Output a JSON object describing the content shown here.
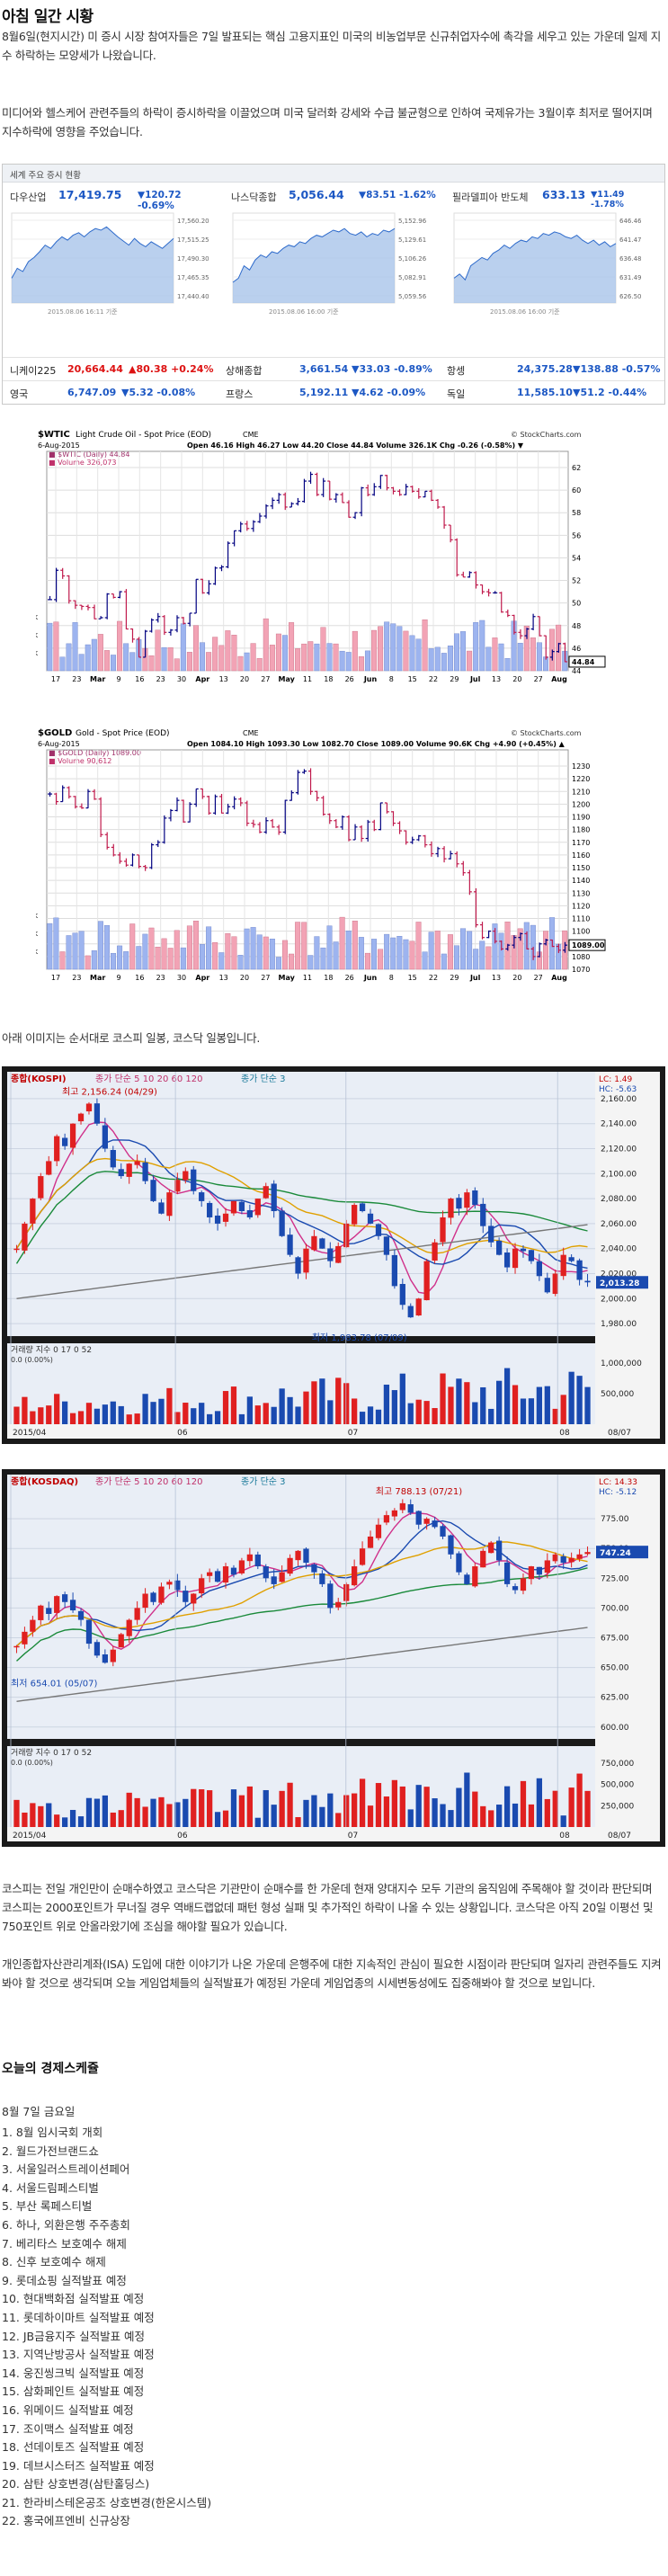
{
  "title": "아침 일간 시황",
  "intro1": "8월6일(현지시간) 미 증시 시장 참여자들은 7일 발표되는 핵심 고용지표인 미국의 비농업부문 신규취업자수에 촉각을 세우고 있는 가운데 일제 지수 하락하는 모양세가 나왔습니다.",
  "intro2": "미디어와 헬스케어 관련주들의 하락이 증시하락을 이끌었으며 미국 달러화 강세와 수급 불균형으로 인하여 국제유가는 3월이후 최저로 떨어지며 지수하락에 영향을 주었습니다.",
  "market": {
    "header": "세계 주요 증시 현황",
    "indices": [
      {
        "name": "다우산업",
        "value": "17,419.75",
        "change": "▼120.72 -0.69%",
        "ticks": [
          "17,560.20",
          "17,515.25",
          "17,490.30",
          "17,465.35",
          "17,440.40"
        ],
        "time": "2015.08.06 16:11 기준",
        "series": [
          0.3,
          0.42,
          0.38,
          0.5,
          0.55,
          0.62,
          0.7,
          0.66,
          0.74,
          0.8,
          0.76,
          0.82,
          0.85,
          0.8,
          0.86,
          0.9,
          0.88,
          0.92,
          0.86,
          0.8,
          0.75,
          0.7,
          0.78,
          0.72,
          0.68,
          0.74,
          0.7,
          0.66,
          0.72,
          0.78
        ]
      },
      {
        "name": "나스닥종합",
        "value": "5,056.44",
        "change": "▼83.51 -1.62%",
        "ticks": [
          "5,152.96",
          "5,129.61",
          "5,106.26",
          "5,082.91",
          "5,059.56"
        ],
        "time": "2015.08.06 16:00 기준",
        "series": [
          0.25,
          0.3,
          0.45,
          0.4,
          0.52,
          0.58,
          0.55,
          0.62,
          0.6,
          0.66,
          0.7,
          0.68,
          0.74,
          0.72,
          0.78,
          0.82,
          0.8,
          0.84,
          0.88,
          0.86,
          0.9,
          0.84,
          0.82,
          0.86,
          0.8,
          0.84,
          0.82,
          0.88,
          0.86,
          0.9
        ]
      },
      {
        "name": "필라델피아 반도체",
        "value": "633.13",
        "change": "▼11.49 -1.78%",
        "ticks": [
          "646.46",
          "641.47",
          "636.48",
          "631.49",
          "626.50"
        ],
        "time": "2015.08.06 16:00 기준",
        "series": [
          0.3,
          0.35,
          0.28,
          0.45,
          0.5,
          0.55,
          0.52,
          0.6,
          0.64,
          0.7,
          0.66,
          0.72,
          0.76,
          0.74,
          0.8,
          0.78,
          0.84,
          0.82,
          0.86,
          0.84,
          0.8,
          0.78,
          0.82,
          0.76,
          0.72,
          0.76,
          0.7,
          0.74,
          0.68,
          0.72
        ]
      }
    ],
    "rows": [
      [
        [
          "니케이225",
          "20,664.44",
          "▲80.38 +0.24%",
          "pos"
        ],
        [
          "상해종합",
          "3,661.54",
          "▼33.03 -0.89%",
          "neg"
        ],
        [
          "항셍",
          "24,375.28",
          "▼138.88 -0.57%",
          "neg"
        ]
      ],
      [
        [
          "영국",
          "6,747.09",
          "▼5.32 -0.08%",
          "neg"
        ],
        [
          "프랑스",
          "5,192.11",
          "▼4.62 -0.09%",
          "neg"
        ],
        [
          "독일",
          "11,585.10",
          "▼51.2 -0.44%",
          "neg"
        ]
      ]
    ]
  },
  "wtic": {
    "ticker": "$WTIC",
    "name": "Light Crude Oil - Spot Price (EOD)",
    "exch": "CME",
    "brand": "© StockCharts.com",
    "date": "6-Aug-2015",
    "ohlc": "Open 46.16  High 46.27  Low 44.20  Close 44.84  Volume 326.1K  Chg -0.26 (-0.58%) ▼",
    "legend_price": "■ $WTIC (Daily) 44.84",
    "legend_vol": "■ Volume 326,073",
    "last": "44.84",
    "ylim": [
      44,
      62
    ],
    "yticks": [
      44,
      46,
      48,
      50,
      52,
      54,
      56,
      58,
      60,
      62
    ],
    "vol_ticks": [
      "200K",
      "400K",
      "600K"
    ],
    "xlabels": [
      "17",
      "23",
      "Mar",
      "9",
      "16",
      "23",
      "30",
      "Apr",
      "13",
      "20",
      "27",
      "May",
      "11",
      "18",
      "26",
      "Jun",
      "8",
      "15",
      "22",
      "29",
      "Jul",
      "13",
      "20",
      "27",
      "Aug"
    ],
    "closes": [
      50.3,
      52.9,
      52.4,
      50.2,
      49.8,
      49.7,
      49.6,
      48.6,
      48.7,
      50.8,
      50.5,
      51.0,
      47.7,
      46.8,
      45.2,
      47.5,
      48.5,
      48.8,
      47.4,
      47.6,
      48.7,
      48.2,
      49.1,
      52.1,
      50.9,
      51.7,
      53.1,
      53.2,
      55.3,
      56.4,
      57.0,
      56.6,
      57.2,
      57.7,
      58.6,
      59.1,
      59.6,
      58.5,
      58.8,
      59.0,
      60.8,
      61.4,
      59.6,
      60.8,
      59.2,
      59.6,
      58.9,
      57.6,
      58.0,
      60.2,
      59.6,
      60.3,
      61.3,
      60.2,
      59.9,
      59.6,
      60.3,
      59.9,
      59.4,
      59.9,
      59.1,
      58.5,
      56.9,
      55.6,
      52.5,
      52.3,
      52.7,
      51.6,
      51.0,
      50.9,
      50.9,
      49.2,
      48.9,
      47.4,
      47.1,
      47.7,
      48.8,
      47.1,
      45.2,
      45.7,
      46.4,
      44.8
    ]
  },
  "gold": {
    "ticker": "$GOLD",
    "name": "Gold - Spot Price (EOD)",
    "exch": "CME",
    "brand": "© StockCharts.com",
    "date": "6-Aug-2015",
    "ohlc": "Open 1084.10  High 1093.30  Low 1082.70  Close 1089.00  Volume 90.6K  Chg +4.90 (+0.45%) ▲",
    "legend_price": "■ $GOLD (Daily) 1089.00",
    "legend_vol": "■ Volume 90,612",
    "last": "1089.00",
    "ylim": [
      1070,
      1230
    ],
    "yticks": [
      1070,
      1080,
      1090,
      1100,
      1110,
      1120,
      1130,
      1140,
      1150,
      1160,
      1170,
      1180,
      1190,
      1200,
      1210,
      1220,
      1230
    ],
    "vol_ticks": [
      "100K",
      "200K",
      "300K"
    ],
    "xlabels": [
      "17",
      "23",
      "Mar",
      "9",
      "16",
      "23",
      "30",
      "Apr",
      "13",
      "20",
      "27",
      "May",
      "11",
      "18",
      "26",
      "Jun",
      "8",
      "15",
      "22",
      "29",
      "Jul",
      "13",
      "20",
      "27",
      "Aug"
    ],
    "closes": [
      1208,
      1202,
      1213,
      1206,
      1198,
      1197,
      1210,
      1204,
      1176,
      1166,
      1160,
      1155,
      1152,
      1160,
      1151,
      1150,
      1168,
      1170,
      1189,
      1195,
      1203,
      1186,
      1200,
      1212,
      1206,
      1193,
      1206,
      1193,
      1198,
      1204,
      1201,
      1185,
      1184,
      1178,
      1187,
      1182,
      1178,
      1203,
      1209,
      1225,
      1226,
      1210,
      1205,
      1192,
      1187,
      1182,
      1190,
      1172,
      1182,
      1173,
      1186,
      1180,
      1201,
      1194,
      1185,
      1179,
      1170,
      1172,
      1175,
      1168,
      1161,
      1165,
      1157,
      1161,
      1153,
      1146,
      1131,
      1105,
      1095,
      1100,
      1092,
      1086,
      1089,
      1095,
      1098,
      1086,
      1080,
      1090,
      1093,
      1088,
      1085,
      1089
    ]
  },
  "korea_note": "아래 이미지는 순서대로 코스피 일봉, 코스닥 일봉입니다.",
  "kospi": {
    "label": "종합(KOSPI)",
    "ma_text": "종가 단순 5  10  20  60  120",
    "ma_extra": "종가 단순 3",
    "hi_label": "최고 2,156.24 (04/29)",
    "lo_label": "최저 1,983.78 (07/09)",
    "lc": "LC: 1.49",
    "hc": "HC: -5.63",
    "last": "2,013.28",
    "ylim": [
      1970,
      2170
    ],
    "yticks": [
      "1,980.00",
      "2,000.00",
      "2,020.00",
      "2,040.00",
      "2,060.00",
      "2,080.00",
      "2,100.00",
      "2,120.00",
      "2,140.00",
      "2,160.00"
    ],
    "vol_label": "거래량 지수 0  17  0  52",
    "vol_sub": "0.0 (0.00%)",
    "vol_ticks": [
      "500,000",
      "1,000,000"
    ],
    "xlabels": [
      "2015/04",
      "06",
      "07",
      "08",
      "08/07"
    ],
    "closes": [
      2040,
      2060,
      2080,
      2098,
      2110,
      2130,
      2122,
      2140,
      2148,
      2156,
      2140,
      2120,
      2105,
      2098,
      2108,
      2110,
      2094,
      2078,
      2068,
      2085,
      2095,
      2102,
      2086,
      2078,
      2065,
      2060,
      2068,
      2078,
      2070,
      2065,
      2080,
      2090,
      2070,
      2050,
      2035,
      2020,
      2040,
      2050,
      2040,
      2030,
      2042,
      2060,
      2075,
      2070,
      2060,
      2050,
      2035,
      2010,
      1995,
      1985,
      2000,
      2030,
      2045,
      2065,
      2080,
      2072,
      2085,
      2075,
      2058,
      2045,
      2035,
      2025,
      2040,
      2038,
      2030,
      2018,
      2005,
      2020,
      2035,
      2030,
      2015,
      2013
    ]
  },
  "kosdaq": {
    "label": "종합(KOSDAQ)",
    "ma_text": "종가 단순 5  10  20  60  120",
    "ma_extra": "종가 단순 3",
    "hi_label": "최고 788.13 (07/21)",
    "lo_label": "최저 654.01 (05/07)",
    "lc": "LC: 14.33",
    "hc": "HC: -5.12",
    "last": "747.24",
    "ylim": [
      590,
      800
    ],
    "yticks": [
      "600.00",
      "625.00",
      "650.00",
      "675.00",
      "700.00",
      "725.00",
      "750.00",
      "775.00"
    ],
    "vol_label": "거래량 지수 0  17  0  52",
    "vol_sub": "0.0 (0.00%)",
    "vol_ticks": [
      "250,000",
      "500,000",
      "750,000"
    ],
    "xlabels": [
      "2015/04",
      "06",
      "07",
      "08",
      "08/07"
    ],
    "closes": [
      668,
      680,
      690,
      702,
      695,
      710,
      705,
      698,
      690,
      670,
      660,
      654,
      665,
      678,
      690,
      700,
      712,
      705,
      718,
      722,
      715,
      705,
      712,
      725,
      730,
      722,
      735,
      728,
      740,
      745,
      735,
      725,
      720,
      730,
      742,
      748,
      738,
      730,
      720,
      700,
      705,
      720,
      735,
      750,
      760,
      770,
      778,
      782,
      788,
      780,
      770,
      775,
      768,
      760,
      745,
      730,
      720,
      735,
      748,
      755,
      740,
      720,
      715,
      725,
      735,
      728,
      740,
      745,
      738,
      742,
      745,
      747
    ]
  },
  "korea_text": "코스피는 전일 개인만이 순매수하였고 코스닥은 기관만이 순매수를 한 가운데 현재 양대지수 모두 기관의 움직임에 주목해야 할 것이라 판단되며 코스피는 2000포인트가 무너질 경우 역배드랩없데 패턴 형성 실패 및 추가적인 하락이 나올 수 있는 상황입니다. 코스닥은 아직 20일 이평선 및 750포인트 위로 안올라왔기에 조심을 해야할 필요가 있습니다.",
  "korea_text2": "개인종합자산관리계좌(ISA) 도입에 대한 이야기가 나온 가운데 은행주에 대한 지속적인 관심이 필요한 시점이라 판단되며 일자리 관련주들도 지켜봐야 할 것으로 생각되며 오늘 게임업체들의 실적발표가 예정된 가운데 게임업종의 시세변동성에도 집중해봐야 할 것으로 보입니다.",
  "schedule_title": "오늘의 경제스케쥴",
  "schedule_date": "8월 7일 금요일",
  "schedule": [
    "1. 8월 임시국회 개회",
    "2. 월드가전브랜드쇼",
    "3. 서울일러스트레이션페어",
    "4. 서울드림페스티벌",
    "5. 부산 록페스티벌",
    "6. 하나, 외환은행 주주총회",
    "7. 베리타스 보호예수 해제",
    "8. 신후 보호예수 해제",
    "9. 롯데쇼핑 실적발표 예정",
    "10. 현대백화점 실적발표 예정",
    "11. 롯데하이마트 실적발표 예정",
    "12. JB금융지주 실적발표 예정",
    "13. 지역난방공사 실적발표 예정",
    "14. 웅진씽크빅 실적발표 예정",
    "15. 삼화페인트 실적발표 예정",
    "16. 위메이드 실적발표 예정",
    "17. 조이맥스 실적발표 예정",
    "18. 선데이토즈 실적발표 예정",
    "19. 데브시스터즈 실적발표 예정",
    "20. 삼탄 상호변경(삼탄홀딩스)",
    "21. 한라비스테온공조 상호변경(한온시스템)",
    "22. 홍국에프엔비 신규상장"
  ]
}
